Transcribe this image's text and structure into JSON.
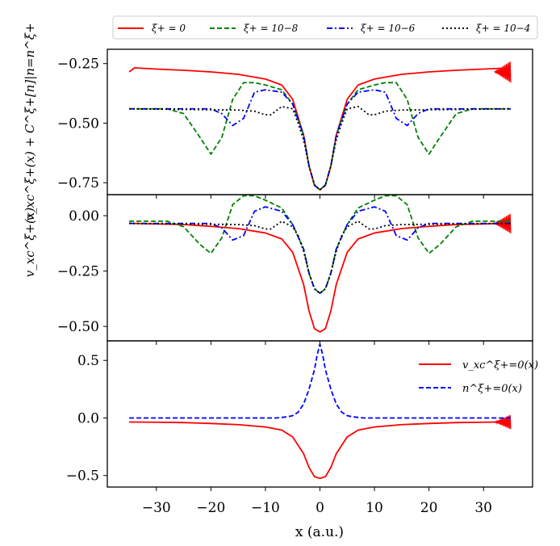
{
  "chart_data": {
    "type": "line",
    "xlabel": "x (a.u.)",
    "xlim": [
      -39,
      39
    ],
    "xticks": [
      -30,
      -20,
      -10,
      0,
      10,
      20,
      30
    ],
    "xtick_labels": [
      "−30",
      "−20",
      "−10",
      "0",
      "10",
      "20",
      "30"
    ],
    "top_legend": {
      "placement": "above-top",
      "entries": [
        {
          "label": "ξ+ = 0",
          "color": "#ff0000",
          "dash": "solid"
        },
        {
          "label": "ξ+ = 10−8",
          "color": "#008000",
          "dash": "dashed"
        },
        {
          "label": "ξ+ = 10−6",
          "color": "#0000ff",
          "dash": "dashdot"
        },
        {
          "label": "ξ+ = 10−4",
          "color": "#000000",
          "dash": "dotted"
        }
      ]
    },
    "panels": [
      {
        "id": "top",
        "ylabel": "v_xc^ξ+(x) + C^ξ+[n]|n=n^ξ+",
        "ylim": [
          -0.8,
          -0.19
        ],
        "yticks": [
          -0.25,
          -0.5,
          -0.75
        ],
        "ytick_labels": [
          "−0.25",
          "−0.50",
          "−0.75"
        ],
        "series": [
          {
            "name": "ξ+ = 0",
            "color": "#ff0000",
            "dash": "solid",
            "x": [
              -35,
              -34,
              -30,
              -25,
              -20,
              -15,
              -10,
              -7,
              -5,
              -3,
              -2,
              -1,
              0,
              1,
              2,
              3,
              5,
              7,
              10,
              15,
              20,
              25,
              30,
              33,
              34,
              35
            ],
            "y": [
              -0.285,
              -0.268,
              -0.273,
              -0.278,
              -0.285,
              -0.295,
              -0.315,
              -0.34,
              -0.4,
              -0.55,
              -0.68,
              -0.76,
              -0.78,
              -0.76,
              -0.68,
              -0.55,
              -0.4,
              -0.34,
              -0.315,
              -0.295,
              -0.285,
              -0.278,
              -0.273,
              -0.27,
              -0.275,
              -0.285
            ],
            "oscillation": {
              "x_start": 32,
              "x_end": 35,
              "amplitude": 0.05
            }
          },
          {
            "name": "ξ+ = 10−8",
            "color": "#008000",
            "dash": "dashed",
            "x": [
              -35,
              -28,
              -25,
              -22,
              -20,
              -18,
              -16,
              -14,
              -12,
              -10,
              -7,
              -5,
              -3,
              -2,
              -1,
              0,
              1,
              2,
              3,
              5,
              7,
              10,
              12,
              14,
              16,
              18,
              20,
              22,
              25,
              28,
              35
            ],
            "y": [
              -0.44,
              -0.44,
              -0.46,
              -0.56,
              -0.63,
              -0.56,
              -0.4,
              -0.33,
              -0.33,
              -0.34,
              -0.36,
              -0.42,
              -0.55,
              -0.68,
              -0.76,
              -0.78,
              -0.76,
              -0.68,
              -0.55,
              -0.42,
              -0.36,
              -0.34,
              -0.33,
              -0.33,
              -0.4,
              -0.56,
              -0.63,
              -0.56,
              -0.46,
              -0.44,
              -0.44
            ]
          },
          {
            "name": "ξ+ = 10−6",
            "color": "#0000ff",
            "dash": "dashdot",
            "x": [
              -35,
              -20,
              -18,
              -16,
              -14,
              -12,
              -10,
              -7,
              -5,
              -3,
              -2,
              -1,
              0,
              1,
              2,
              3,
              5,
              7,
              10,
              12,
              14,
              16,
              18,
              20,
              35
            ],
            "y": [
              -0.44,
              -0.44,
              -0.46,
              -0.51,
              -0.48,
              -0.37,
              -0.36,
              -0.37,
              -0.42,
              -0.55,
              -0.68,
              -0.76,
              -0.78,
              -0.76,
              -0.68,
              -0.55,
              -0.42,
              -0.37,
              -0.36,
              -0.37,
              -0.48,
              -0.51,
              -0.46,
              -0.44,
              -0.44
            ]
          },
          {
            "name": "ξ+ = 10−4",
            "color": "#000000",
            "dash": "dotted",
            "x": [
              -35,
              -15,
              -12,
              -10,
              -9,
              -7,
              -5,
              -4,
              -3,
              -2,
              -1,
              0,
              1,
              2,
              3,
              4,
              5,
              7,
              9,
              10,
              12,
              15,
              35
            ],
            "y": [
              -0.44,
              -0.445,
              -0.45,
              -0.465,
              -0.465,
              -0.43,
              -0.44,
              -0.5,
              -0.57,
              -0.68,
              -0.76,
              -0.78,
              -0.76,
              -0.68,
              -0.57,
              -0.5,
              -0.44,
              -0.43,
              -0.465,
              -0.465,
              -0.45,
              -0.445,
              -0.44
            ]
          }
        ]
      },
      {
        "id": "middle",
        "ylabel": "v_xc^ξ+(x)",
        "ylim": [
          -0.565,
          0.095
        ],
        "yticks": [
          0.0,
          -0.25,
          -0.5
        ],
        "ytick_labels": [
          "0.00",
          "−0.25",
          "−0.50"
        ],
        "series": [
          {
            "name": "ξ+ = 0",
            "color": "#ff0000",
            "dash": "solid",
            "x": [
              -35,
              -30,
              -25,
              -20,
              -15,
              -10,
              -7,
              -5,
              -3,
              -2,
              -1,
              0,
              1,
              2,
              3,
              5,
              7,
              10,
              15,
              20,
              25,
              30,
              33,
              35
            ],
            "y": [
              -0.035,
              -0.037,
              -0.04,
              -0.048,
              -0.058,
              -0.078,
              -0.105,
              -0.165,
              -0.31,
              -0.43,
              -0.51,
              -0.525,
              -0.51,
              -0.43,
              -0.31,
              -0.165,
              -0.105,
              -0.078,
              -0.058,
              -0.048,
              -0.04,
              -0.037,
              -0.035,
              -0.035
            ],
            "oscillation": {
              "x_start": 32,
              "x_end": 35,
              "amplitude": 0.05
            }
          },
          {
            "name": "ξ+ = 10−8",
            "color": "#008000",
            "dash": "dashed",
            "x": [
              -35,
              -28,
              -25,
              -22,
              -20,
              -18,
              -16,
              -14,
              -12,
              -10,
              -7,
              -5,
              -3,
              -2,
              -1,
              0,
              1,
              2,
              3,
              5,
              7,
              10,
              12,
              14,
              16,
              18,
              20,
              22,
              25,
              28,
              35
            ],
            "y": [
              -0.025,
              -0.025,
              -0.05,
              -0.13,
              -0.17,
              -0.1,
              0.05,
              0.09,
              0.09,
              0.07,
              0.035,
              -0.04,
              -0.15,
              -0.26,
              -0.33,
              -0.35,
              -0.33,
              -0.26,
              -0.15,
              -0.04,
              0.035,
              0.07,
              0.09,
              0.09,
              0.05,
              -0.1,
              -0.17,
              -0.13,
              -0.05,
              -0.025,
              -0.025
            ]
          },
          {
            "name": "ξ+ = 10−6",
            "color": "#0000ff",
            "dash": "dashdot",
            "x": [
              -35,
              -20,
              -18,
              -16,
              -14,
              -12,
              -10,
              -7,
              -5,
              -3,
              -2,
              -1,
              0,
              1,
              2,
              3,
              5,
              7,
              10,
              12,
              14,
              16,
              18,
              20,
              35
            ],
            "y": [
              -0.035,
              -0.035,
              -0.055,
              -0.11,
              -0.09,
              0.02,
              0.04,
              0.02,
              -0.04,
              -0.15,
              -0.26,
              -0.33,
              -0.35,
              -0.33,
              -0.26,
              -0.15,
              -0.04,
              0.02,
              0.04,
              0.02,
              -0.09,
              -0.11,
              -0.055,
              -0.035,
              -0.035
            ]
          },
          {
            "name": "ξ+ = 10−4",
            "color": "#000000",
            "dash": "dotted",
            "x": [
              -35,
              -15,
              -12,
              -10,
              -9,
              -7,
              -5,
              -4,
              -3,
              -2,
              -1,
              0,
              1,
              2,
              3,
              4,
              5,
              7,
              9,
              10,
              12,
              15,
              35
            ],
            "y": [
              -0.035,
              -0.04,
              -0.045,
              -0.06,
              -0.06,
              -0.025,
              -0.05,
              -0.09,
              -0.16,
              -0.26,
              -0.33,
              -0.35,
              -0.33,
              -0.26,
              -0.16,
              -0.09,
              -0.05,
              -0.025,
              -0.06,
              -0.06,
              -0.045,
              -0.04,
              -0.035
            ]
          }
        ]
      },
      {
        "id": "bottom",
        "ylim": [
          -0.6,
          0.67
        ],
        "yticks": [
          0.5,
          0.0,
          -0.5
        ],
        "ytick_labels": [
          "0.5",
          "0.0",
          "−0.5"
        ],
        "legend": {
          "placement": "top-right",
          "entries": [
            {
              "label": "v_xc^ξ+=0(x)",
              "color": "#ff0000",
              "dash": "solid"
            },
            {
              "label": "n^ξ+=0(x)",
              "color": "#0000ff",
              "dash": "dashed"
            }
          ]
        },
        "series": [
          {
            "name": "v_xc^ξ+=0(x)",
            "color": "#ff0000",
            "dash": "solid",
            "x": [
              -35,
              -30,
              -25,
              -20,
              -15,
              -10,
              -7,
              -5,
              -3,
              -2,
              -1,
              0,
              1,
              2,
              3,
              5,
              7,
              10,
              15,
              20,
              25,
              30,
              33,
              35
            ],
            "y": [
              -0.035,
              -0.037,
              -0.04,
              -0.048,
              -0.058,
              -0.078,
              -0.105,
              -0.165,
              -0.31,
              -0.43,
              -0.51,
              -0.525,
              -0.51,
              -0.43,
              -0.31,
              -0.165,
              -0.105,
              -0.078,
              -0.058,
              -0.048,
              -0.04,
              -0.037,
              -0.035,
              -0.035
            ],
            "oscillation": {
              "x_start": 32,
              "x_end": 35,
              "amplitude": 0.07
            }
          },
          {
            "name": "n^ξ+=0(x)",
            "color": "#0000ff",
            "dash": "dashed",
            "x": [
              -35,
              -8,
              -6,
              -5,
              -4,
              -3,
              -2,
              -1,
              -0.5,
              0,
              0.5,
              1,
              2,
              3,
              4,
              5,
              6,
              8,
              35
            ],
            "y": [
              0.0,
              0.0,
              0.01,
              0.02,
              0.05,
              0.12,
              0.25,
              0.42,
              0.55,
              0.64,
              0.55,
              0.42,
              0.25,
              0.12,
              0.05,
              0.02,
              0.01,
              0.0,
              0.0
            ]
          }
        ]
      }
    ]
  }
}
